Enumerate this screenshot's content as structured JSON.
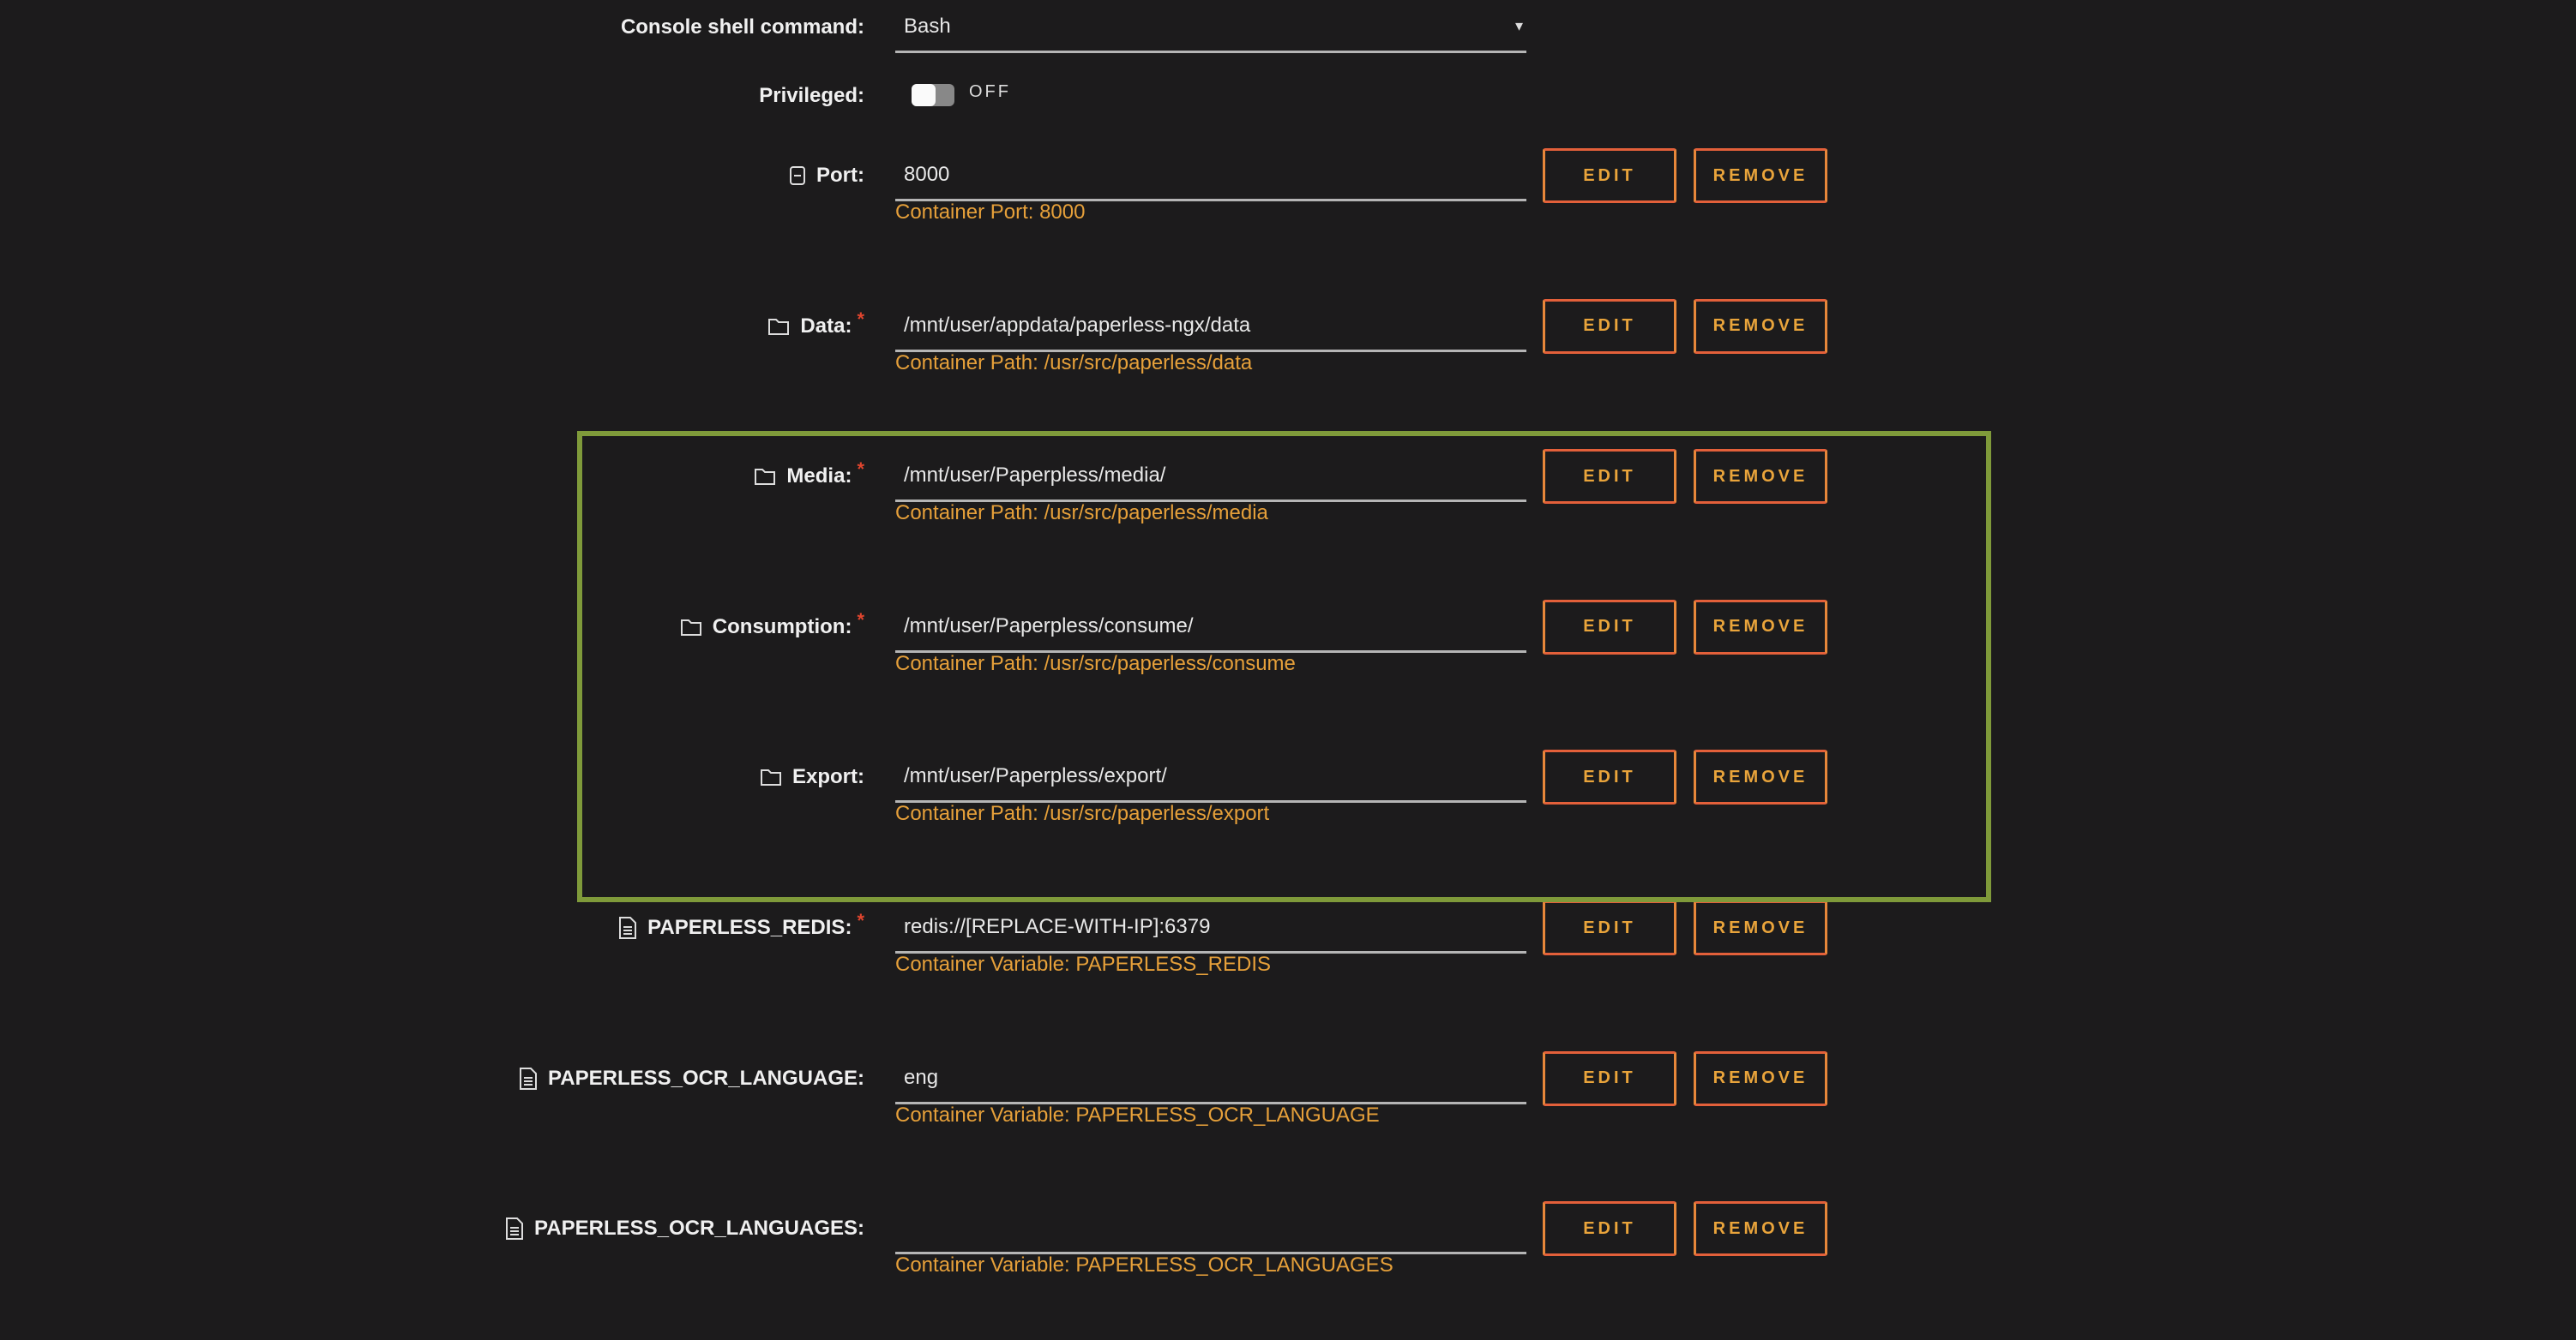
{
  "colors": {
    "background": "#1c1b1c",
    "accent": "#e9a43b",
    "button_border": "#e7873a",
    "required": "#e0452e",
    "highlight_box": "#7f9a3a"
  },
  "console": {
    "label": "Console shell command:",
    "value": "Bash",
    "caret": "▾"
  },
  "privileged": {
    "label": "Privileged:",
    "state": "OFF"
  },
  "buttons": {
    "edit": "EDIT",
    "remove": "REMOVE"
  },
  "required_mark": "*",
  "rows": [
    {
      "icon": "port-icon",
      "label": "Port:",
      "required": false,
      "value": "8000",
      "hint": "Container Port: 8000"
    },
    {
      "icon": "folder-icon",
      "label": "Data:",
      "required": true,
      "value": "/mnt/user/appdata/paperless-ngx/data",
      "hint": "Container Path: /usr/src/paperless/data"
    },
    {
      "icon": "folder-icon",
      "label": "Media:",
      "required": true,
      "value": "/mnt/user/Paperpless/media/",
      "hint": "Container Path: /usr/src/paperless/media"
    },
    {
      "icon": "folder-icon",
      "label": "Consumption:",
      "required": true,
      "value": "/mnt/user/Paperpless/consume/",
      "hint": "Container Path: /usr/src/paperless/consume"
    },
    {
      "icon": "folder-icon",
      "label": "Export:",
      "required": false,
      "value": "/mnt/user/Paperpless/export/",
      "hint": "Container Path: /usr/src/paperless/export"
    },
    {
      "icon": "document-icon",
      "label": "PAPERLESS_REDIS:",
      "required": true,
      "value": "redis://[REPLACE-WITH-IP]:6379",
      "hint": "Container Variable: PAPERLESS_REDIS"
    },
    {
      "icon": "document-icon",
      "label": "PAPERLESS_OCR_LANGUAGE:",
      "required": false,
      "value": "eng",
      "hint": "Container Variable: PAPERLESS_OCR_LANGUAGE"
    },
    {
      "icon": "document-icon",
      "label": "PAPERLESS_OCR_LANGUAGES:",
      "required": false,
      "value": "",
      "hint": "Container Variable: PAPERLESS_OCR_LANGUAGES"
    }
  ]
}
